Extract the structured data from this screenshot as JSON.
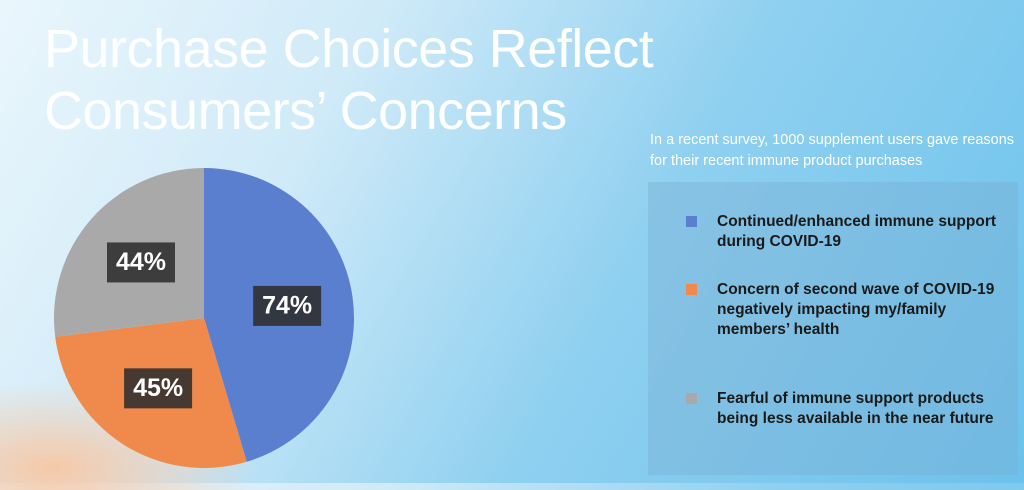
{
  "chart_data": {
    "type": "pie",
    "title": "Purchase Choices Reflect Consumers’ Concerns",
    "subtitle": "In a recent survey, 1000 supplement users gave reasons for their recent immune product purchases",
    "categories": [
      "Continued/enhanced immune support during COVID-19",
      "Concern of second wave of COVID-19 negatively impacting my/family members’ health",
      "Fearful of immune support products being less available in the near future"
    ],
    "values": [
      74,
      45,
      44
    ],
    "value_labels": [
      "74%",
      "45%",
      "44%"
    ],
    "colors": [
      "#5b7fcf",
      "#ef8a4c",
      "#a9a9a9"
    ]
  }
}
